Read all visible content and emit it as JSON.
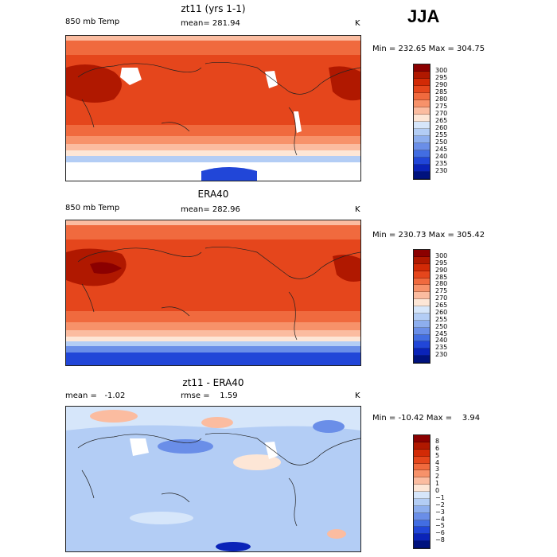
{
  "season": "JJA",
  "panels": [
    {
      "title": "zt11 (yrs 1-1)",
      "left_label": "850 mb Temp",
      "center_label": "mean= 281.94",
      "units": "K",
      "min_max": "Min = 232.65 Max = 304.75",
      "colorbar_labels": [
        "300",
        "295",
        "290",
        "285",
        "280",
        "275",
        "270",
        "265",
        "260",
        "255",
        "250",
        "245",
        "240",
        "235",
        "230"
      ],
      "colors": [
        "#8b0000",
        "#b01800",
        "#d22a06",
        "#e5461c",
        "#f06a3e",
        "#f7926a",
        "#fbbca0",
        "#fde6d6",
        "#d6e6fa",
        "#b3cdf5",
        "#8daeee",
        "#6a8ee8",
        "#426de2",
        "#2146d8",
        "#0a23b8",
        "#00127e"
      ]
    },
    {
      "title": "ERA40",
      "left_label": "850 mb Temp",
      "center_label": "mean= 282.96",
      "units": "K",
      "min_max": "Min = 230.73 Max = 305.42",
      "colorbar_labels": [
        "300",
        "295",
        "290",
        "285",
        "280",
        "275",
        "270",
        "265",
        "260",
        "255",
        "250",
        "245",
        "240",
        "235",
        "230"
      ],
      "colors": [
        "#8b0000",
        "#b01800",
        "#d22a06",
        "#e5461c",
        "#f06a3e",
        "#f7926a",
        "#fbbca0",
        "#fde6d6",
        "#d6e6fa",
        "#b3cdf5",
        "#8daeee",
        "#6a8ee8",
        "#426de2",
        "#2146d8",
        "#0a23b8",
        "#00127e"
      ]
    },
    {
      "title": "zt11 - ERA40",
      "left_label": "mean =   -1.02",
      "center_label": "rmse =    1.59",
      "units": "K",
      "min_max": "Min = -10.42 Max =    3.94",
      "colorbar_labels": [
        "8",
        "6",
        "5",
        "4",
        "3",
        "2",
        "1",
        "0",
        "−1",
        "−2",
        "−3",
        "−4",
        "−5",
        "−6",
        "−8"
      ],
      "colors": [
        "#8b0000",
        "#b01800",
        "#d22a06",
        "#e5461c",
        "#f06a3e",
        "#f7926a",
        "#fbbca0",
        "#fde6d6",
        "#d6e6fa",
        "#b3cdf5",
        "#8daeee",
        "#6a8ee8",
        "#426de2",
        "#2146d8",
        "#0a23b8",
        "#00127e"
      ]
    }
  ],
  "chart_data": [
    {
      "type": "heatmap",
      "title": "zt11 (yrs 1-1)",
      "variable": "850 mb Temp",
      "units": "K",
      "mean": 281.94,
      "min": 232.65,
      "max": 304.75,
      "levels": [
        230,
        235,
        240,
        245,
        250,
        255,
        260,
        265,
        270,
        275,
        280,
        285,
        290,
        295,
        300
      ],
      "season": "JJA"
    },
    {
      "type": "heatmap",
      "title": "ERA40",
      "variable": "850 mb Temp",
      "units": "K",
      "mean": 282.96,
      "min": 230.73,
      "max": 305.42,
      "levels": [
        230,
        235,
        240,
        245,
        250,
        255,
        260,
        265,
        270,
        275,
        280,
        285,
        290,
        295,
        300
      ],
      "season": "JJA"
    },
    {
      "type": "heatmap",
      "title": "zt11 - ERA40",
      "units": "K",
      "mean": -1.02,
      "rmse": 1.59,
      "min": -10.42,
      "max": 3.94,
      "levels": [
        -8,
        -6,
        -5,
        -4,
        -3,
        -2,
        -1,
        0,
        1,
        2,
        3,
        4,
        5,
        6,
        8
      ],
      "season": "JJA"
    }
  ]
}
